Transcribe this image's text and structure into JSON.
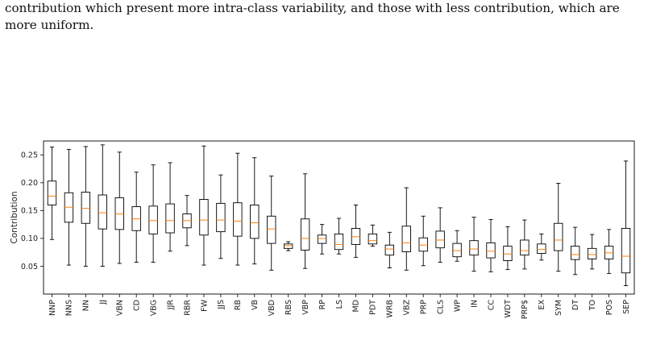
{
  "caption": {
    "line1": "contribution which present more intra-class variability, and those with less contribution, which are",
    "line2": "more uniform."
  },
  "chart_data": {
    "type": "boxplot",
    "title": "",
    "xlabel": "",
    "ylabel": "Contribution",
    "ylim": [
      0.0,
      0.275
    ],
    "yticks": [
      0.05,
      0.1,
      0.15,
      0.2,
      0.25
    ],
    "ytick_labels": [
      "0.05",
      "0.10",
      "0.15",
      "0.20",
      "0.25"
    ],
    "grid": false,
    "box_color": "#000000",
    "median_color": "#ff7f0e",
    "categories": [
      "NNP",
      "NNS",
      "NN",
      "JJ",
      "VBN",
      "CD",
      "VBG",
      "JJR",
      "RBR",
      "FW",
      "JJS",
      "RB",
      "VB",
      "VBD",
      "RBS",
      "VBP",
      "RP",
      "LS",
      "MD",
      "PDT",
      "WRB",
      "VBZ",
      "PRP",
      "CLS",
      "WP",
      "IN",
      "CC",
      "WDT",
      "PRP$",
      "EX",
      "SYM",
      "DT",
      "TO",
      "POS",
      "SEP"
    ],
    "boxes": [
      {
        "wlo": 0.098,
        "q1": 0.16,
        "med": 0.176,
        "q3": 0.203,
        "whi": 0.264
      },
      {
        "wlo": 0.052,
        "q1": 0.129,
        "med": 0.156,
        "q3": 0.182,
        "whi": 0.26
      },
      {
        "wlo": 0.05,
        "q1": 0.127,
        "med": 0.154,
        "q3": 0.183,
        "whi": 0.265
      },
      {
        "wlo": 0.05,
        "q1": 0.117,
        "med": 0.146,
        "q3": 0.178,
        "whi": 0.268
      },
      {
        "wlo": 0.055,
        "q1": 0.116,
        "med": 0.144,
        "q3": 0.173,
        "whi": 0.255
      },
      {
        "wlo": 0.057,
        "q1": 0.114,
        "med": 0.135,
        "q3": 0.157,
        "whi": 0.219
      },
      {
        "wlo": 0.057,
        "q1": 0.108,
        "med": 0.132,
        "q3": 0.158,
        "whi": 0.232
      },
      {
        "wlo": 0.077,
        "q1": 0.11,
        "med": 0.132,
        "q3": 0.162,
        "whi": 0.236
      },
      {
        "wlo": 0.087,
        "q1": 0.119,
        "med": 0.132,
        "q3": 0.144,
        "whi": 0.177
      },
      {
        "wlo": 0.052,
        "q1": 0.106,
        "med": 0.133,
        "q3": 0.17,
        "whi": 0.266
      },
      {
        "wlo": 0.064,
        "q1": 0.112,
        "med": 0.133,
        "q3": 0.163,
        "whi": 0.214
      },
      {
        "wlo": 0.052,
        "q1": 0.104,
        "med": 0.131,
        "q3": 0.164,
        "whi": 0.253
      },
      {
        "wlo": 0.054,
        "q1": 0.1,
        "med": 0.128,
        "q3": 0.16,
        "whi": 0.245
      },
      {
        "wlo": 0.043,
        "q1": 0.091,
        "med": 0.117,
        "q3": 0.14,
        "whi": 0.212
      },
      {
        "wlo": 0.078,
        "q1": 0.082,
        "med": 0.087,
        "q3": 0.09,
        "whi": 0.094
      },
      {
        "wlo": 0.046,
        "q1": 0.079,
        "med": 0.1,
        "q3": 0.135,
        "whi": 0.216
      },
      {
        "wlo": 0.072,
        "q1": 0.091,
        "med": 0.1,
        "q3": 0.106,
        "whi": 0.125
      },
      {
        "wlo": 0.072,
        "q1": 0.08,
        "med": 0.089,
        "q3": 0.108,
        "whi": 0.136
      },
      {
        "wlo": 0.066,
        "q1": 0.089,
        "med": 0.103,
        "q3": 0.118,
        "whi": 0.16
      },
      {
        "wlo": 0.086,
        "q1": 0.09,
        "med": 0.096,
        "q3": 0.108,
        "whi": 0.124
      },
      {
        "wlo": 0.047,
        "q1": 0.07,
        "med": 0.081,
        "q3": 0.088,
        "whi": 0.111
      },
      {
        "wlo": 0.043,
        "q1": 0.076,
        "med": 0.092,
        "q3": 0.122,
        "whi": 0.191
      },
      {
        "wlo": 0.051,
        "q1": 0.077,
        "med": 0.088,
        "q3": 0.101,
        "whi": 0.14
      },
      {
        "wlo": 0.057,
        "q1": 0.083,
        "med": 0.097,
        "q3": 0.113,
        "whi": 0.155
      },
      {
        "wlo": 0.059,
        "q1": 0.067,
        "med": 0.078,
        "q3": 0.091,
        "whi": 0.114
      },
      {
        "wlo": 0.041,
        "q1": 0.07,
        "med": 0.081,
        "q3": 0.096,
        "whi": 0.138
      },
      {
        "wlo": 0.04,
        "q1": 0.065,
        "med": 0.077,
        "q3": 0.092,
        "whi": 0.134
      },
      {
        "wlo": 0.044,
        "q1": 0.06,
        "med": 0.072,
        "q3": 0.086,
        "whi": 0.121
      },
      {
        "wlo": 0.045,
        "q1": 0.07,
        "med": 0.078,
        "q3": 0.097,
        "whi": 0.133
      },
      {
        "wlo": 0.061,
        "q1": 0.073,
        "med": 0.08,
        "q3": 0.09,
        "whi": 0.108
      },
      {
        "wlo": 0.041,
        "q1": 0.078,
        "med": 0.097,
        "q3": 0.127,
        "whi": 0.199
      },
      {
        "wlo": 0.035,
        "q1": 0.062,
        "med": 0.071,
        "q3": 0.086,
        "whi": 0.12
      },
      {
        "wlo": 0.045,
        "q1": 0.063,
        "med": 0.071,
        "q3": 0.082,
        "whi": 0.107
      },
      {
        "wlo": 0.037,
        "q1": 0.063,
        "med": 0.074,
        "q3": 0.086,
        "whi": 0.116
      },
      {
        "wlo": 0.015,
        "q1": 0.038,
        "med": 0.068,
        "q3": 0.118,
        "whi": 0.239
      }
    ]
  }
}
